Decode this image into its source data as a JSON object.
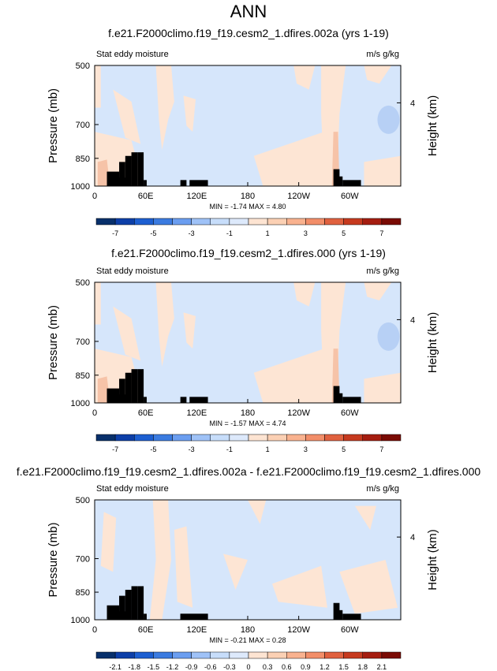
{
  "main_title": "ANN",
  "colors": {
    "cbar_main": [
      "#08306b",
      "#0d3fa8",
      "#1d5fd1",
      "#3b7be0",
      "#6b9ef0",
      "#9fc2f7",
      "#c7ddfa",
      "#dde9fb",
      "#fde4d2",
      "#fbd0b4",
      "#f9b28f",
      "#f28e69",
      "#e0613f",
      "#c63a1f",
      "#a51d10",
      "#7a0b04"
    ],
    "cbar_diff": [
      "#08306b",
      "#0d3fa8",
      "#1d5fd1",
      "#3b7be0",
      "#6b9ef0",
      "#9fc2f7",
      "#c7ddfa",
      "#dde9fb",
      "#fde4d2",
      "#fbd0b4",
      "#f9b28f",
      "#f28e69",
      "#e0613f",
      "#c63a1f",
      "#a51d10",
      "#7a0b04"
    ],
    "light_blue": "#d6e6fb",
    "light_orange": "#fde5d4",
    "med_blue": "#b7d0f5",
    "orange": "#f6c3a8",
    "terrain": "#000000"
  },
  "chart_data": [
    {
      "type": "heatmap",
      "title": "f.e21.F2000climo.f19_f19.cesm2_1.dfires.002a (yrs 1-19)",
      "left_label": "Stat eddy moisture",
      "right_label": "m/s g/kg",
      "ylabel": "Pressure (mb)",
      "ylabel_right": "Height (km)",
      "x_ticks": [
        "0",
        "60E",
        "120E",
        "180",
        "120W",
        "60W"
      ],
      "y_ticks": [
        "500",
        "700",
        "850",
        "1000"
      ],
      "y_right_ticks": [
        "4"
      ],
      "min_max": "MIN = -1.74   MAX =   4.80",
      "colorbar_labels": [
        "-7",
        "-5",
        "-3",
        "-1",
        "1",
        "3",
        "5",
        "7"
      ],
      "colorbar_levels": [
        -7,
        -6,
        -5,
        -4,
        -3,
        -2,
        -1,
        0,
        1,
        2,
        3,
        4,
        5,
        6,
        7
      ],
      "min": -1.74,
      "max": 4.8
    },
    {
      "type": "heatmap",
      "title": "f.e21.F2000climo.f19_f19.cesm2_1.dfires.000 (yrs 1-19)",
      "left_label": "Stat eddy moisture",
      "right_label": "m/s g/kg",
      "ylabel": "Pressure (mb)",
      "ylabel_right": "Height (km)",
      "x_ticks": [
        "0",
        "60E",
        "120E",
        "180",
        "120W",
        "60W"
      ],
      "y_ticks": [
        "500",
        "700",
        "850",
        "1000"
      ],
      "y_right_ticks": [
        "4"
      ],
      "min_max": "MIN = -1.57   MAX =   4.74",
      "colorbar_labels": [
        "-7",
        "-5",
        "-3",
        "-1",
        "1",
        "3",
        "5",
        "7"
      ],
      "colorbar_levels": [
        -7,
        -6,
        -5,
        -4,
        -3,
        -2,
        -1,
        0,
        1,
        2,
        3,
        4,
        5,
        6,
        7
      ],
      "min": -1.57,
      "max": 4.74
    },
    {
      "type": "heatmap",
      "title": "f.e21.F2000climo.f19_f19.cesm2_1.dfires.002a - f.e21.F2000climo.f19_f19.cesm2_1.dfires.000",
      "left_label": "Stat eddy moisture",
      "right_label": "m/s g/kg",
      "ylabel": "Pressure (mb)",
      "ylabel_right": "Height (km)",
      "x_ticks": [
        "0",
        "60E",
        "120E",
        "180",
        "120W",
        "60W"
      ],
      "y_ticks": [
        "500",
        "700",
        "850",
        "1000"
      ],
      "y_right_ticks": [
        "4"
      ],
      "min_max": "MIN = -0.21   MAX =   0.28",
      "colorbar_labels": [
        "-2.1",
        "-1.8",
        "-1.5",
        "-1.2",
        "-0.9",
        "-0.6",
        "-0.3",
        "0",
        "0.3",
        "0.6",
        "0.9",
        "1.2",
        "1.5",
        "1.8",
        "2.1"
      ],
      "colorbar_levels": [
        -2.1,
        -1.8,
        -1.5,
        -1.2,
        -0.9,
        -0.6,
        -0.3,
        0,
        0.3,
        0.6,
        0.9,
        1.2,
        1.5,
        1.8,
        2.1
      ],
      "min": -0.21,
      "max": 0.28
    }
  ]
}
